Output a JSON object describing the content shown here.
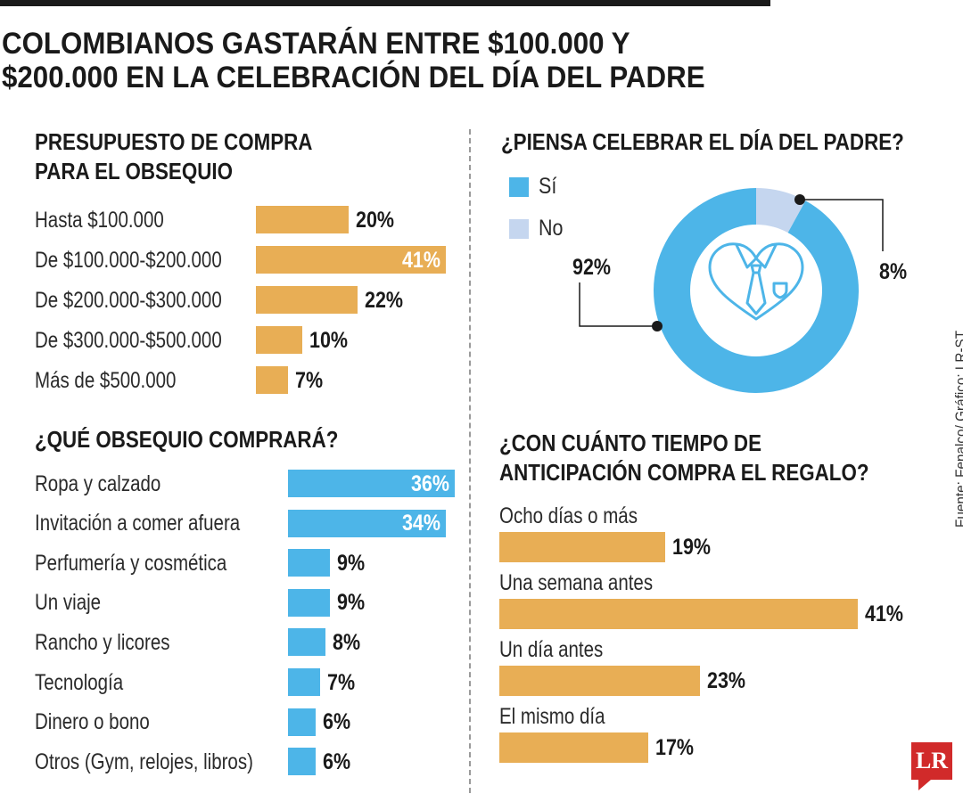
{
  "title": "COLOMBIANOS GASTARÁN ENTRE $100.000 Y $200.000 EN LA CELEBRACIÓN DEL DÍA DEL PADRE",
  "source": "Fuente: Fenalco/ Gráfico: LR-ST",
  "logo_text": "LR",
  "colors": {
    "orange": "#e8ae55",
    "blue": "#4db5e8",
    "light_blue": "#c5d6ef",
    "dark": "#1a1a1a"
  },
  "chart_data": [
    {
      "type": "bar",
      "orientation": "horizontal",
      "title": "PRESUPUESTO DE COMPRA PARA EL OBSEQUIO",
      "title_lines": [
        "PRESUPUESTO DE COMPRA",
        "PARA EL OBSEQUIO"
      ],
      "categories": [
        "Hasta $100.000",
        "De $100.000-$200.000",
        "De $200.000-$300.000",
        "De $300.000-$500.000",
        "Más de $500.000"
      ],
      "values": [
        20,
        41,
        22,
        10,
        7
      ],
      "value_labels": [
        "20%",
        "41%",
        "22%",
        "10%",
        "7%"
      ],
      "unit": "%",
      "color": "orange"
    },
    {
      "type": "pie",
      "title": "¿PIENSA CELEBRAR EL DÍA DEL PADRE?",
      "categories": [
        "Sí",
        "No"
      ],
      "values": [
        92,
        8
      ],
      "value_labels": [
        "92%",
        "8%"
      ],
      "colors": [
        "#4db5e8",
        "#c5d6ef"
      ],
      "center_icon": "heart-tie-icon"
    },
    {
      "type": "bar",
      "orientation": "horizontal",
      "title": "¿QUÉ OBSEQUIO COMPRARÁ?",
      "categories": [
        "Ropa y calzado",
        "Invitación a comer afuera",
        "Perfumería y cosmética",
        "Un viaje",
        "Rancho y licores",
        "Tecnología",
        "Dinero o bono",
        "Otros (Gym, relojes, libros)"
      ],
      "values": [
        36,
        34,
        9,
        9,
        8,
        7,
        6,
        6
      ],
      "value_labels": [
        "36%",
        "34%",
        "9%",
        "9%",
        "8%",
        "7%",
        "6%",
        "6%"
      ],
      "unit": "%",
      "color": "blue"
    },
    {
      "type": "bar",
      "orientation": "horizontal",
      "title": "¿CON CUÁNTO TIEMPO DE ANTICIPACIÓN COMPRA EL REGALO?",
      "title_lines": [
        "¿CON CUÁNTO TIEMPO DE",
        "ANTICIPACIÓN COMPRA EL REGALO?"
      ],
      "categories": [
        "Ocho días o más",
        "Una semana antes",
        "Un día antes",
        "El mismo día"
      ],
      "values": [
        19,
        41,
        23,
        17
      ],
      "value_labels": [
        "19%",
        "41%",
        "23%",
        "17%"
      ],
      "unit": "%",
      "color": "orange"
    }
  ]
}
